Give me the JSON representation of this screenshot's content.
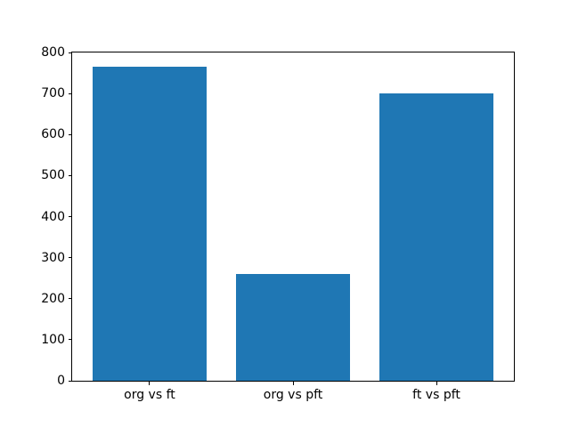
{
  "figure": {
    "background_color": "#ffffff",
    "spine_color": "#000000",
    "text_color": "#000000"
  },
  "chart_data": {
    "type": "bar",
    "title": "",
    "xlabel": "",
    "ylabel": "",
    "categories": [
      "org vs ft",
      "org vs pft",
      "ft vs pft"
    ],
    "values": [
      765,
      260,
      700
    ],
    "bar_color": "#1f77b4",
    "bar_width": 0.8,
    "xlim": [
      -0.54,
      2.54
    ],
    "ylim": [
      0,
      800
    ],
    "yticks": [
      0,
      100,
      200,
      300,
      400,
      500,
      600,
      700,
      800
    ],
    "grid": false,
    "legend": "none"
  }
}
